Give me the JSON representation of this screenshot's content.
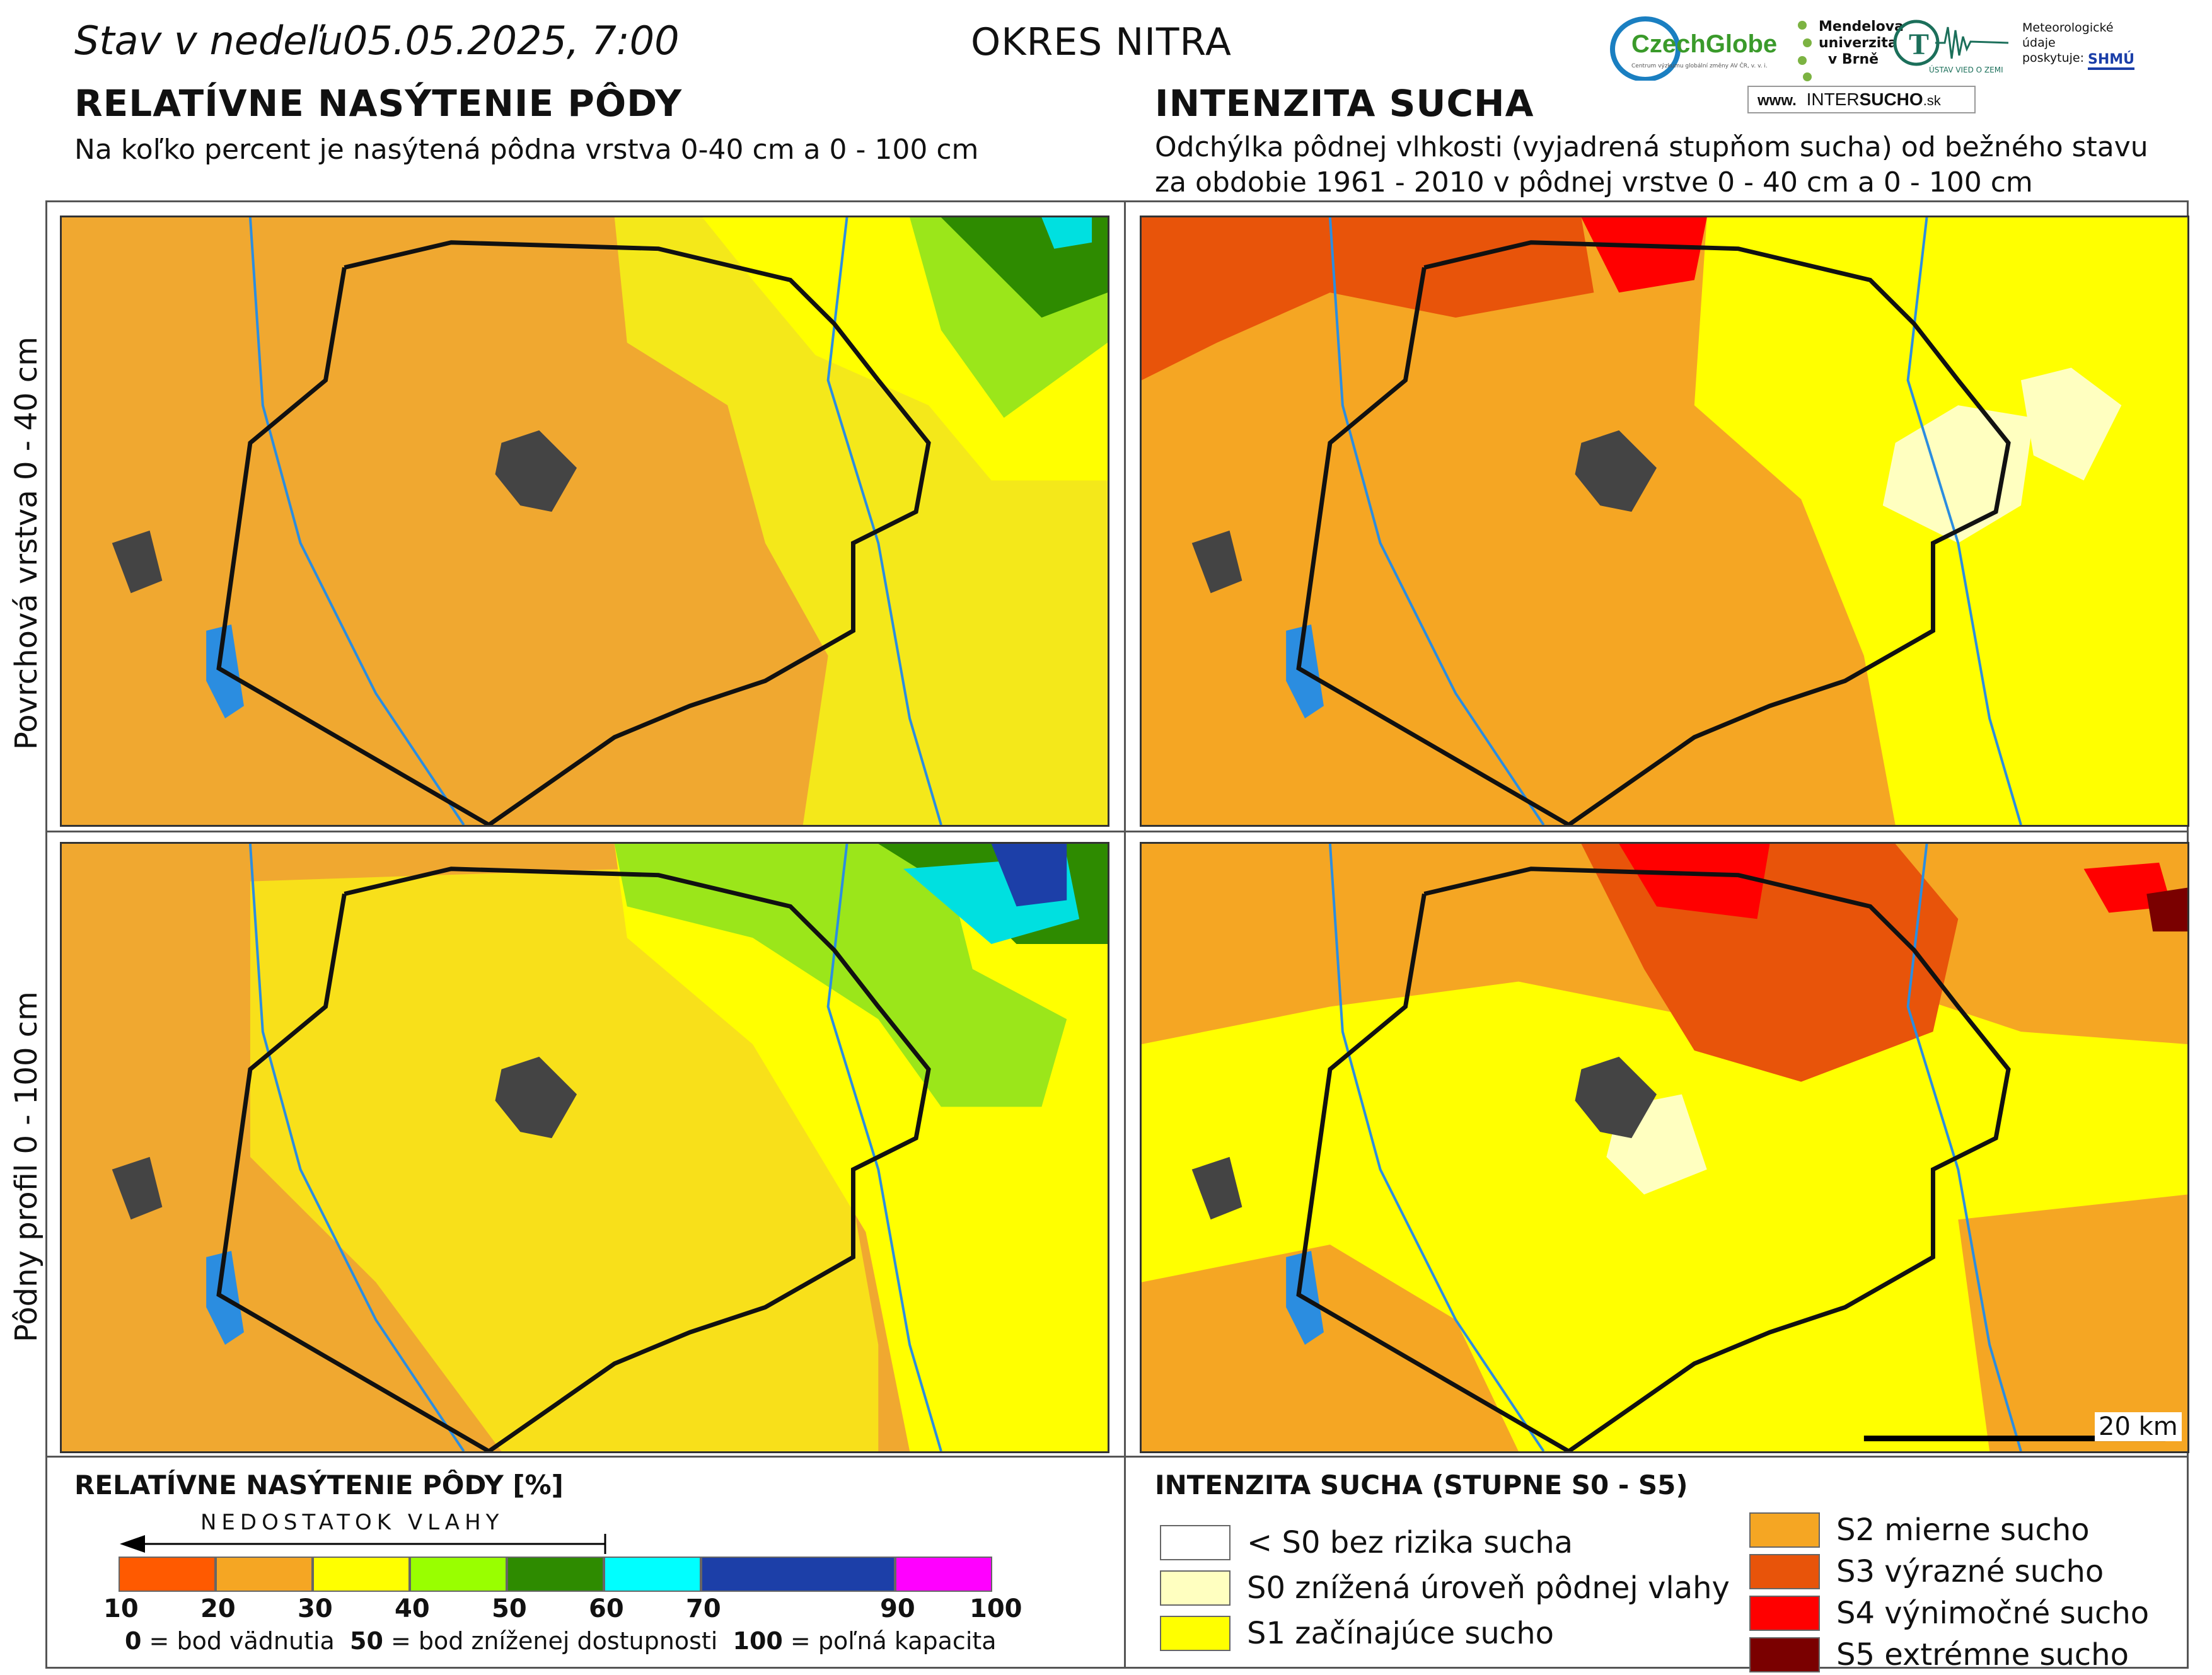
{
  "header": {
    "status": "Stav v nedeľu05.05.2025, 7:00",
    "district": "OKRES NITRA"
  },
  "logos": {
    "czechglobe": "CzechGlobe",
    "czechglobe_sub": "Centrum výzkumu globální změny AV ČR, v. v. i.",
    "mendel": "Mendelova univerzita v Brně",
    "uvz": "ÚSTAV VIED O ZEMI",
    "meteo": "Meteorologické údaje poskytuje:",
    "shmu": "SHMÚ",
    "intersucho_prefix": "www.",
    "intersucho_a": "INTER",
    "intersucho_b": "SUCHO",
    "intersucho_suffix": ".sk"
  },
  "left": {
    "title": "RELATÍVNE NASÝTENIE PÔDY",
    "subtitle": "Na koľko percent je nasýtená pôdna vrstva 0-40 cm a 0 - 100 cm"
  },
  "right": {
    "title": "INTENZITA SUCHA",
    "subtitle1": "Odchýlka pôdnej vlhkosti (vyjadrená stupňom sucha) od bežného stavu",
    "subtitle2": "za obdobie 1961 - 2010 v pôdnej vrstve 0 - 40 cm a 0 - 100 cm"
  },
  "rows": {
    "top": "Povrchová vrstva 0 - 40 cm",
    "bottom": "Pôdny profil 0 - 100 cm"
  },
  "scalebar": "20 km",
  "legend_left": {
    "title": "RELATÍVNE NASÝTENIE PÔDY [%]",
    "arrow_label": "NEDOSTATOK VLAHY",
    "colors": [
      "#8b0000",
      "#ff5a00",
      "#f5a623",
      "#ffff00",
      "#99ff00",
      "#2e8b00",
      "#00ffff",
      "#1c3fa8",
      "#ff00ff"
    ],
    "ticks": [
      "10",
      "20",
      "30",
      "40",
      "50",
      "60",
      "70",
      "90",
      "100"
    ],
    "note_a": "0",
    "note_a_text": " = bod vädnutia  ",
    "note_b": "50",
    "note_b_text": " = bod zníženej dostupnosti  ",
    "note_c": "100",
    "note_c_text": " = poľná kapacita"
  },
  "legend_right": {
    "title": "INTENZITA SUCHA (STUPNE S0 - S5)",
    "items": [
      {
        "label": "< S0 bez rizika sucha",
        "color": "#ffffff"
      },
      {
        "label": "S0 znížená úroveň pôdnej vlahy",
        "color": "#ffffc0"
      },
      {
        "label": "S1 začínajúce sucho",
        "color": "#ffff00"
      },
      {
        "label": "S2 mierne sucho",
        "color": "#f5a623"
      },
      {
        "label": "S3 výrazné sucho",
        "color": "#e8540a"
      },
      {
        "label": "S4 výnimočné sucho",
        "color": "#ff0000"
      },
      {
        "label": "S5 extrémne sucho",
        "color": "#7a0000"
      }
    ]
  }
}
